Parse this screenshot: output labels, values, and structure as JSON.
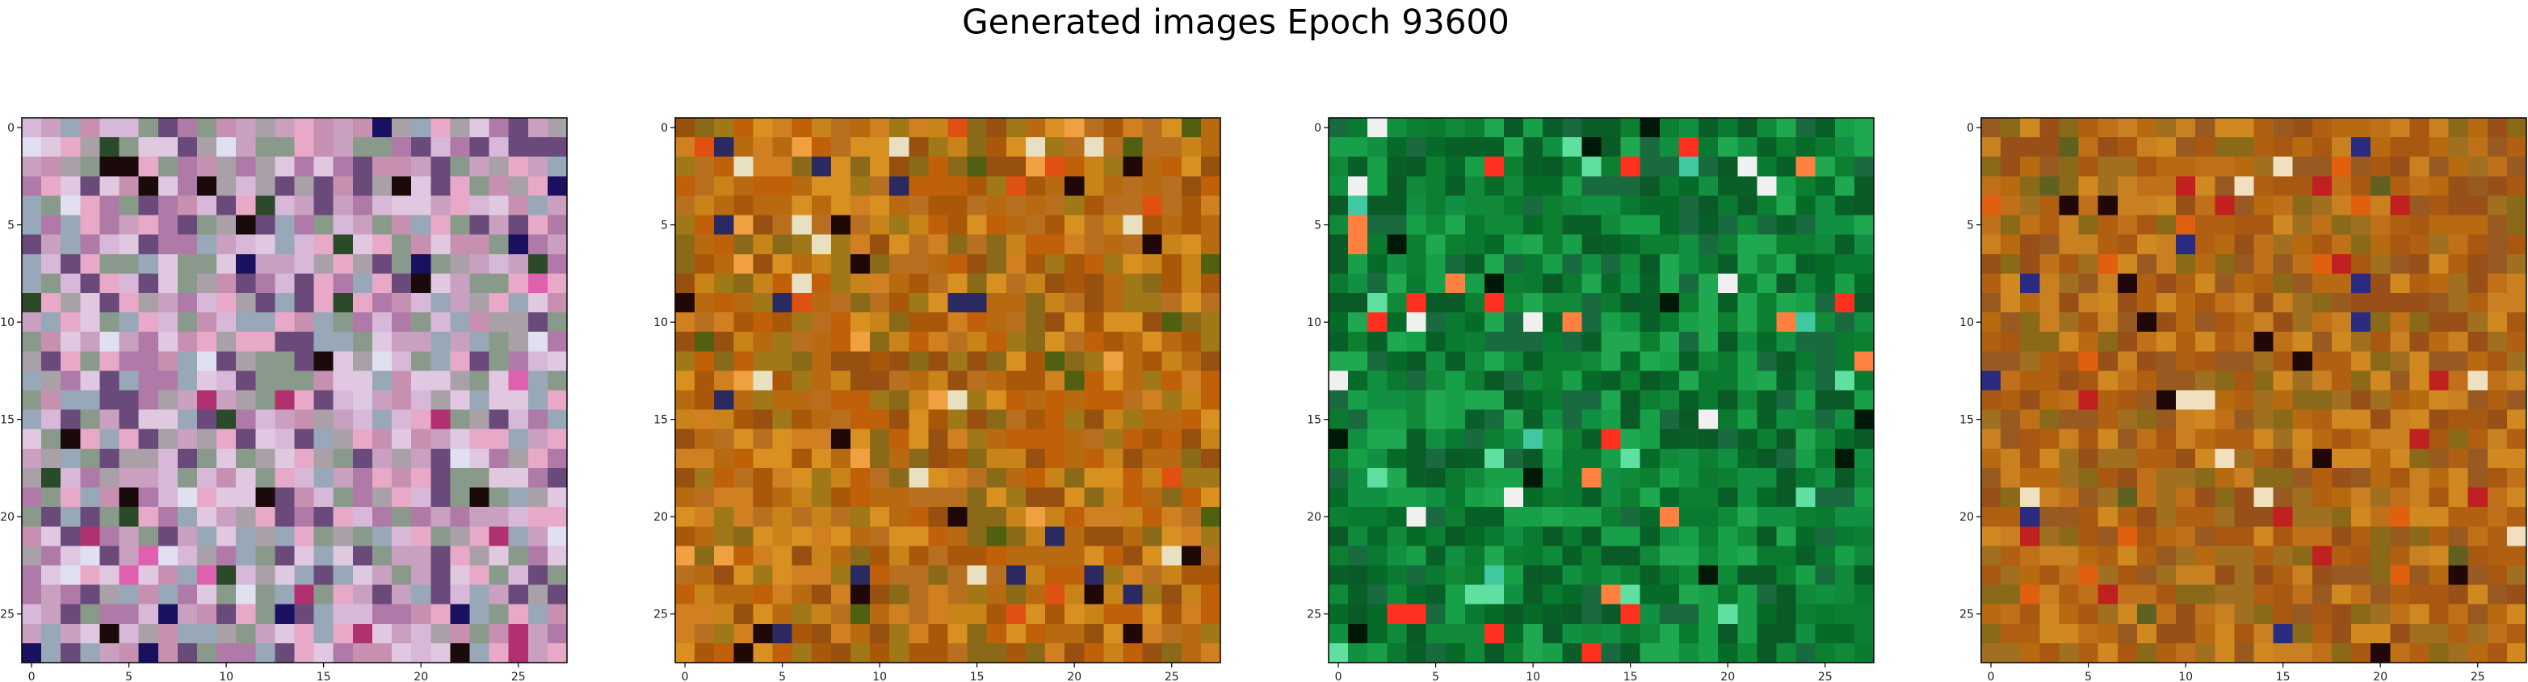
{
  "figure": {
    "title": "Generated images Epoch 93600"
  },
  "chart_data": [
    {
      "type": "heatmap",
      "xlim": [
        -0.5,
        27.5
      ],
      "ylim": [
        27.5,
        -0.5
      ],
      "x_ticks": [
        "0",
        "5",
        "10",
        "15",
        "20",
        "25"
      ],
      "y_ticks": [
        "0",
        "5",
        "10",
        "15",
        "20",
        "25"
      ],
      "palette": [
        "#c9a0c0",
        "#a9a0a8",
        "#d8b8d8",
        "#8a9a8a",
        "#b07aa8",
        "#e0c8e0",
        "#6a4a7a",
        "#c890b0",
        "#98a8b8",
        "#e8a8c8"
      ],
      "accent_colors": [
        "#1a0a0a",
        "#1a1060",
        "#b03070",
        "#2a4a2a",
        "#e0e0f0",
        "#e060b0"
      ],
      "seed": 11
    },
    {
      "type": "heatmap",
      "xlim": [
        -0.5,
        27.5
      ],
      "ylim": [
        27.5,
        -0.5
      ],
      "x_ticks": [
        "0",
        "5",
        "10",
        "15",
        "20",
        "25"
      ],
      "y_ticks": [
        "0",
        "5",
        "10",
        "15",
        "20",
        "25"
      ],
      "palette": [
        "#b86a10",
        "#a85808",
        "#c88418",
        "#985010",
        "#d08020",
        "#8a6a18",
        "#b87020",
        "#c06008",
        "#a07818",
        "#d89020"
      ],
      "accent_colors": [
        "#200808",
        "#e05010",
        "#506010",
        "#f0a040",
        "#2a2a60",
        "#e8e0c0"
      ],
      "seed": 23
    },
    {
      "type": "heatmap",
      "xlim": [
        -0.5,
        27.5
      ],
      "ylim": [
        27.5,
        -0.5
      ],
      "x_ticks": [
        "0",
        "5",
        "10",
        "15",
        "20",
        "25"
      ],
      "y_ticks": [
        "0",
        "5",
        "10",
        "15",
        "20",
        "25"
      ],
      "palette": [
        "#0a7a30",
        "#108a38",
        "#066a28",
        "#18a048",
        "#0a5a28",
        "#109040",
        "#1a6a40",
        "#0c8030",
        "#20a850",
        "#086028"
      ],
      "accent_colors": [
        "#ff3020",
        "#f0f0f0",
        "#60e0a0",
        "#ff8040",
        "#001808",
        "#40c8a0"
      ],
      "seed": 37
    },
    {
      "type": "heatmap",
      "xlim": [
        -0.5,
        27.5
      ],
      "ylim": [
        27.5,
        -0.5
      ],
      "x_ticks": [
        "0",
        "5",
        "10",
        "15",
        "20",
        "25"
      ],
      "y_ticks": [
        "0",
        "5",
        "10",
        "15",
        "20",
        "25"
      ],
      "palette": [
        "#b86a10",
        "#a85810",
        "#c88020",
        "#985018",
        "#c07018",
        "#8a6a18",
        "#b06010",
        "#d08820",
        "#a07020",
        "#985a20"
      ],
      "accent_colors": [
        "#200808",
        "#e06010",
        "#2a2a80",
        "#f0e0c0",
        "#c02020",
        "#606020"
      ],
      "seed": 51
    }
  ]
}
